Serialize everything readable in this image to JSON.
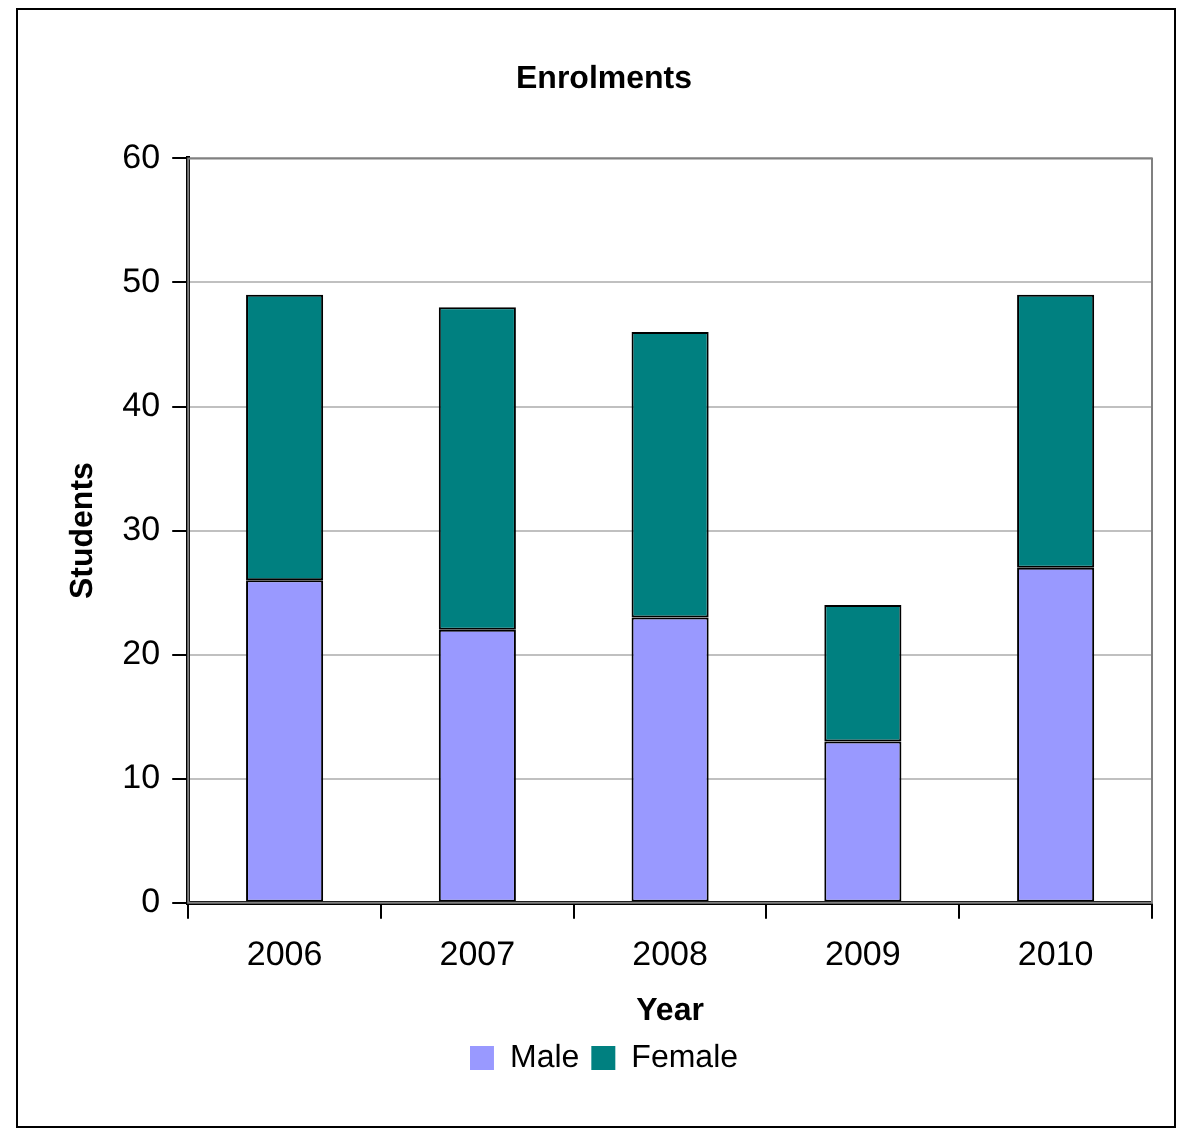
{
  "chart_data": {
    "type": "bar",
    "title": "Enrolments",
    "xlabel": "Year",
    "ylabel": "Students",
    "categories": [
      "2006",
      "2007",
      "2008",
      "2009",
      "2010"
    ],
    "series": [
      {
        "name": "Male",
        "color": "#9999ff",
        "values": [
          26,
          22,
          23,
          13,
          27
        ]
      },
      {
        "name": "Female",
        "color": "#008080",
        "values": [
          23,
          26,
          23,
          11,
          22
        ]
      }
    ],
    "stacked": true,
    "ylim": [
      0,
      60
    ],
    "yticks": [
      0,
      10,
      20,
      30,
      40,
      50,
      60
    ],
    "grid": "y",
    "legend": "bottom"
  }
}
